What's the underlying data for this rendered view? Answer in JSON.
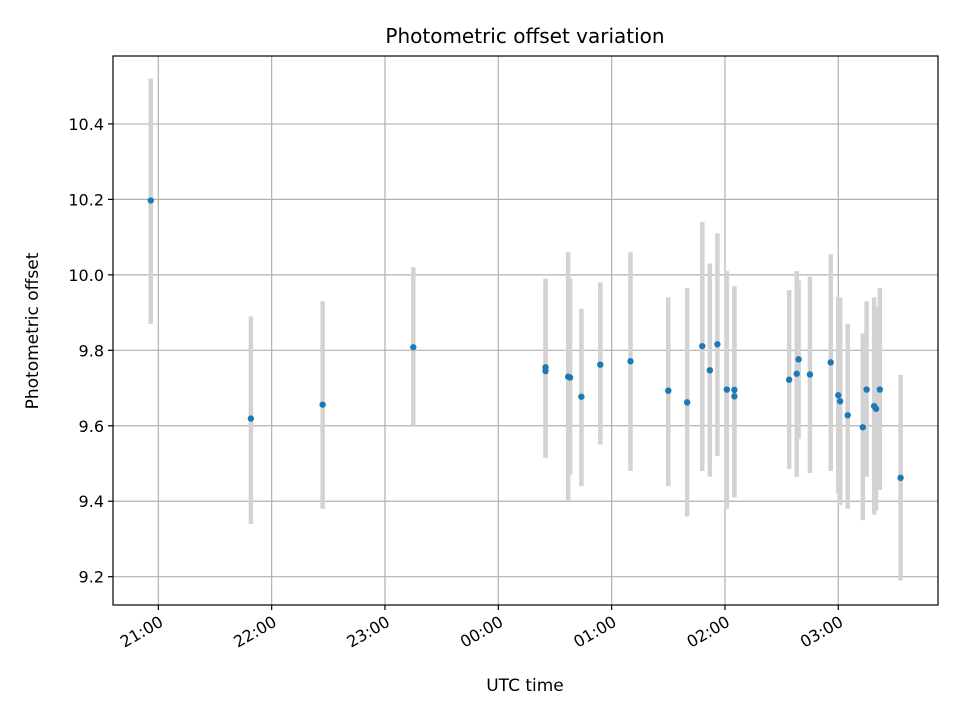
{
  "chart_data": {
    "type": "scatter",
    "title": "Photometric offset variation",
    "xlabel": "UTC time",
    "ylabel": "Photometric offset",
    "x_tick_labels": [
      "21:00",
      "22:00",
      "23:00",
      "00:00",
      "01:00",
      "02:00",
      "03:00"
    ],
    "x_tick_values_hours": [
      21,
      22,
      23,
      24,
      25,
      26,
      27
    ],
    "x_range_hours": [
      20.6,
      27.88
    ],
    "y_tick_labels": [
      "9.2",
      "9.4",
      "9.6",
      "9.8",
      "10.0",
      "10.2",
      "10.4"
    ],
    "y_tick_values": [
      9.2,
      9.4,
      9.6,
      9.8,
      10.0,
      10.2,
      10.4
    ],
    "ylim": [
      9.125,
      10.58
    ],
    "grid": true,
    "point_color": "#1f77b4",
    "errorbar_color": "#d3d3d3",
    "points": [
      {
        "x": "20:56",
        "y": 10.197,
        "err_low": 9.87,
        "err_high": 10.52
      },
      {
        "x": "21:49",
        "y": 9.619,
        "err_low": 9.34,
        "err_high": 9.89
      },
      {
        "x": "22:27",
        "y": 9.656,
        "err_low": 9.38,
        "err_high": 9.93
      },
      {
        "x": "23:15",
        "y": 9.808,
        "err_low": 9.6,
        "err_high": 10.02
      },
      {
        "x": "00:25",
        "y": 9.745,
        "err_low": 9.52,
        "err_high": 9.97
      },
      {
        "x": "00:25",
        "y": 9.755,
        "err_low": 9.515,
        "err_high": 9.99
      },
      {
        "x": "00:37",
        "y": 9.73,
        "err_low": 9.4,
        "err_high": 10.06
      },
      {
        "x": "00:38",
        "y": 9.728,
        "err_low": 9.47,
        "err_high": 9.99
      },
      {
        "x": "00:44",
        "y": 9.677,
        "err_low": 9.44,
        "err_high": 9.91
      },
      {
        "x": "00:54",
        "y": 9.762,
        "err_low": 9.55,
        "err_high": 9.98
      },
      {
        "x": "01:10",
        "y": 9.771,
        "err_low": 9.48,
        "err_high": 10.06
      },
      {
        "x": "01:30",
        "y": 9.693,
        "err_low": 9.44,
        "err_high": 9.94
      },
      {
        "x": "01:40",
        "y": 9.662,
        "err_low": 9.36,
        "err_high": 9.965
      },
      {
        "x": "01:48",
        "y": 9.811,
        "err_low": 9.48,
        "err_high": 10.14
      },
      {
        "x": "01:52",
        "y": 9.747,
        "err_low": 9.465,
        "err_high": 10.03
      },
      {
        "x": "01:56",
        "y": 9.816,
        "err_low": 9.52,
        "err_high": 10.11
      },
      {
        "x": "02:01",
        "y": 9.696,
        "err_low": 9.38,
        "err_high": 10.01
      },
      {
        "x": "02:05",
        "y": 9.695,
        "err_low": 9.42,
        "err_high": 9.97
      },
      {
        "x": "02:05",
        "y": 9.678,
        "err_low": 9.41,
        "err_high": 9.96
      },
      {
        "x": "02:34",
        "y": 9.722,
        "err_low": 9.485,
        "err_high": 9.96
      },
      {
        "x": "02:38",
        "y": 9.738,
        "err_low": 9.465,
        "err_high": 10.01
      },
      {
        "x": "02:39",
        "y": 9.776,
        "err_low": 9.565,
        "err_high": 9.985
      },
      {
        "x": "02:45",
        "y": 9.736,
        "err_low": 9.475,
        "err_high": 9.995
      },
      {
        "x": "02:56",
        "y": 9.768,
        "err_low": 9.48,
        "err_high": 10.055
      },
      {
        "x": "03:00",
        "y": 9.681,
        "err_low": 9.42,
        "err_high": 9.94
      },
      {
        "x": "03:01",
        "y": 9.665,
        "err_low": 9.39,
        "err_high": 9.94
      },
      {
        "x": "03:05",
        "y": 9.628,
        "err_low": 9.38,
        "err_high": 9.87
      },
      {
        "x": "03:13",
        "y": 9.596,
        "err_low": 9.35,
        "err_high": 9.845
      },
      {
        "x": "03:15",
        "y": 9.696,
        "err_low": 9.465,
        "err_high": 9.93
      },
      {
        "x": "03:19",
        "y": 9.652,
        "err_low": 9.365,
        "err_high": 9.94
      },
      {
        "x": "03:20",
        "y": 9.645,
        "err_low": 9.375,
        "err_high": 9.915
      },
      {
        "x": "03:22",
        "y": 9.696,
        "err_low": 9.43,
        "err_high": 9.965
      },
      {
        "x": "03:33",
        "y": 9.462,
        "err_low": 9.19,
        "err_high": 9.735
      }
    ]
  }
}
